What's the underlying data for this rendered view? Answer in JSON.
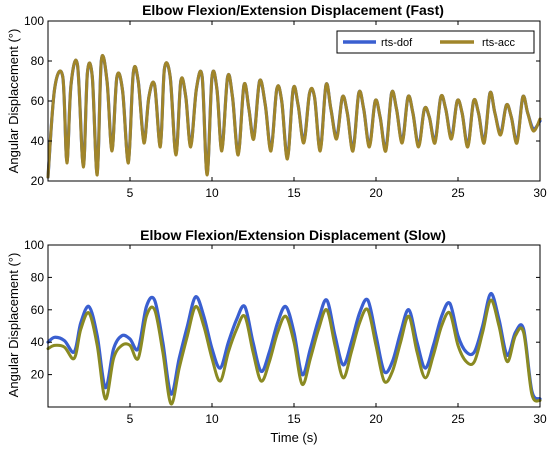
{
  "chart_data": [
    {
      "type": "line",
      "title": "Elbow Flexion/Extension Displacement (Fast)",
      "xlabel": "",
      "ylabel": "Angular Displacement (°)",
      "xlim": [
        0,
        30
      ],
      "ylim": [
        20,
        100
      ],
      "xticks": [
        5,
        10,
        15,
        20,
        25,
        30
      ],
      "yticks": [
        20,
        40,
        60,
        80,
        100
      ],
      "grid": false,
      "legend": "top-right",
      "legend_entries": [
        "rts-dof",
        "rts-acc"
      ],
      "x": [
        0,
        0.4,
        0.9,
        1.15,
        1.4,
        1.8,
        2.15,
        2.4,
        2.7,
        3.0,
        3.25,
        3.6,
        3.9,
        4.2,
        4.55,
        4.9,
        5.2,
        5.5,
        5.85,
        6.15,
        6.5,
        6.85,
        7.1,
        7.45,
        7.8,
        8.1,
        8.4,
        8.7,
        9.05,
        9.4,
        9.7,
        10.0,
        10.3,
        10.6,
        10.95,
        11.25,
        11.6,
        11.95,
        12.25,
        12.55,
        12.9,
        13.25,
        13.6,
        13.95,
        14.25,
        14.6,
        14.95,
        15.25,
        15.6,
        15.95,
        16.25,
        16.6,
        16.95,
        17.25,
        17.6,
        17.95,
        18.25,
        18.6,
        18.95,
        19.25,
        19.6,
        19.95,
        20.25,
        20.6,
        20.95,
        21.25,
        21.6,
        21.95,
        22.25,
        22.6,
        22.95,
        23.25,
        23.6,
        23.95,
        24.25,
        24.6,
        24.95,
        25.25,
        25.6,
        25.95,
        26.25,
        26.6,
        26.95,
        27.25,
        27.6,
        27.95,
        28.25,
        28.6,
        28.95,
        29.25,
        29.6,
        30.0
      ],
      "series": [
        {
          "name": "rts-dof",
          "color": "#3a5fd0",
          "values": [
            22,
            66,
            72,
            30,
            68,
            78,
            28,
            74,
            72,
            24,
            80,
            70,
            36,
            72,
            65,
            30,
            74,
            70,
            40,
            62,
            68,
            38,
            76,
            72,
            34,
            70,
            62,
            38,
            66,
            72,
            24,
            72,
            66,
            36,
            72,
            62,
            34,
            68,
            56,
            42,
            70,
            58,
            36,
            66,
            60,
            32,
            66,
            58,
            40,
            64,
            62,
            36,
            68,
            56,
            42,
            62,
            54,
            36,
            64,
            56,
            38,
            60,
            52,
            36,
            64,
            56,
            40,
            62,
            54,
            38,
            56,
            52,
            40,
            62,
            56,
            42,
            60,
            54,
            38,
            60,
            54,
            40,
            64,
            54,
            44,
            58,
            52,
            40,
            62,
            54,
            46,
            50
          ]
        },
        {
          "name": "rts-acc",
          "color": "#a0852a",
          "values": [
            22,
            66,
            72,
            29,
            68,
            78,
            27,
            74,
            72,
            23,
            80,
            70,
            35,
            72,
            65,
            29,
            74,
            70,
            39,
            62,
            68,
            37,
            76,
            72,
            33,
            70,
            62,
            37,
            66,
            72,
            23,
            72,
            66,
            35,
            72,
            62,
            33,
            68,
            56,
            41,
            70,
            58,
            35,
            66,
            60,
            31,
            66,
            58,
            39,
            64,
            62,
            35,
            68,
            56,
            41,
            62,
            54,
            35,
            64,
            56,
            37,
            60,
            52,
            35,
            64,
            56,
            39,
            62,
            54,
            37,
            56,
            52,
            39,
            62,
            56,
            41,
            60,
            54,
            37,
            60,
            54,
            39,
            64,
            54,
            43,
            58,
            52,
            39,
            62,
            54,
            45,
            51
          ]
        }
      ]
    },
    {
      "type": "line",
      "title": "Elbow Flexion/Extension Displacement (Slow)",
      "xlabel": "Time (s)",
      "ylabel": "Angular Displacement (°)",
      "xlim": [
        0,
        30
      ],
      "ylim": [
        0,
        100
      ],
      "xticks": [
        5,
        10,
        15,
        20,
        25,
        30
      ],
      "yticks": [
        20,
        40,
        60,
        80,
        100
      ],
      "grid": false,
      "x": [
        0,
        0.4,
        1.0,
        1.6,
        2.0,
        2.5,
        3.0,
        3.5,
        4.0,
        4.5,
        5.0,
        5.5,
        6.0,
        6.5,
        7.0,
        7.5,
        8.0,
        8.5,
        9.0,
        9.5,
        10.0,
        10.5,
        11.0,
        11.5,
        12.0,
        12.5,
        13.0,
        13.5,
        14.0,
        14.5,
        15.0,
        15.5,
        16.0,
        16.5,
        17.0,
        17.5,
        18.0,
        18.5,
        19.0,
        19.5,
        20.0,
        20.5,
        21.0,
        21.5,
        22.0,
        22.5,
        23.0,
        23.5,
        24.0,
        24.5,
        25.0,
        25.5,
        26.0,
        26.5,
        27.0,
        27.5,
        28.0,
        28.5,
        29.0,
        29.5,
        30.0
      ],
      "series": [
        {
          "name": "rts-dof",
          "color": "#3a5fd0",
          "values": [
            40,
            43,
            41,
            34,
            52,
            62,
            44,
            12,
            36,
            44,
            42,
            36,
            62,
            66,
            40,
            8,
            30,
            50,
            68,
            56,
            36,
            24,
            40,
            54,
            62,
            40,
            22,
            34,
            52,
            62,
            46,
            20,
            36,
            54,
            66,
            44,
            26,
            40,
            58,
            66,
            44,
            22,
            28,
            46,
            60,
            40,
            24,
            38,
            56,
            64,
            44,
            34,
            34,
            50,
            70,
            54,
            32,
            46,
            48,
            10,
            5
          ]
        },
        {
          "name": "rts-acc",
          "color": "#8a8a22",
          "values": [
            36,
            38,
            37,
            30,
            48,
            58,
            38,
            5,
            30,
            38,
            38,
            30,
            56,
            60,
            34,
            2,
            24,
            44,
            62,
            50,
            30,
            16,
            34,
            48,
            56,
            34,
            16,
            28,
            46,
            56,
            40,
            14,
            30,
            48,
            60,
            38,
            18,
            34,
            52,
            60,
            38,
            16,
            22,
            40,
            56,
            34,
            18,
            32,
            50,
            58,
            38,
            28,
            28,
            46,
            66,
            50,
            28,
            44,
            46,
            8,
            4
          ]
        }
      ]
    }
  ]
}
